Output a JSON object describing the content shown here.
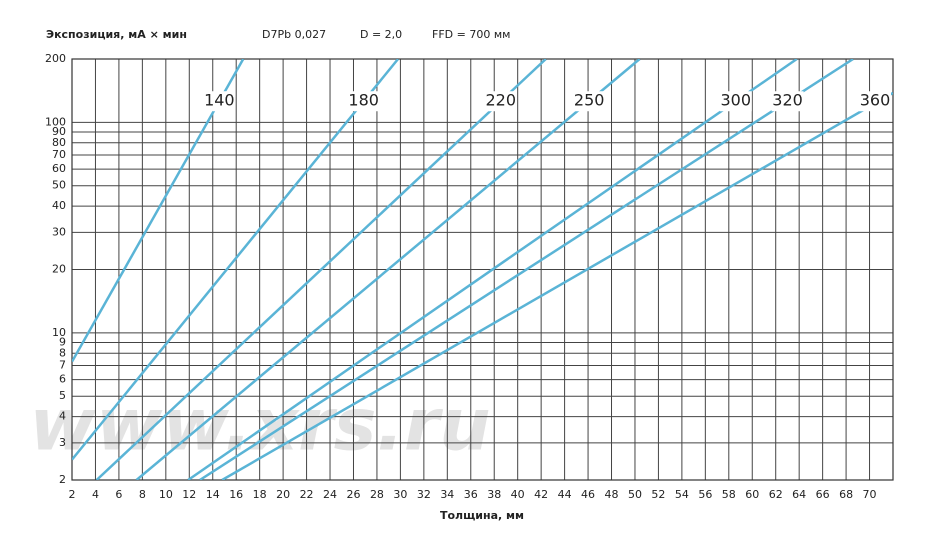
{
  "chart_data": {
    "type": "line",
    "title": "Экспозиция, мА × мин",
    "annotations": [
      "D7Pb 0,027",
      "D = 2,0",
      "FFD = 700 мм"
    ],
    "watermark": "www.xrs.ru",
    "x_label": "Толщина, мм",
    "xlim": [
      2,
      72
    ],
    "xticks": [
      2,
      4,
      6,
      8,
      10,
      12,
      14,
      16,
      18,
      20,
      22,
      24,
      26,
      28,
      30,
      32,
      34,
      36,
      38,
      40,
      42,
      44,
      46,
      48,
      50,
      52,
      54,
      56,
      58,
      60,
      62,
      64,
      66,
      68,
      70
    ],
    "ylim": [
      2,
      200
    ],
    "yticks": [
      2,
      3,
      4,
      5,
      6,
      7,
      8,
      9,
      10,
      20,
      30,
      40,
      50,
      60,
      70,
      80,
      90,
      100,
      200
    ],
    "log_y": true,
    "grid": true,
    "series": [
      {
        "name": "140",
        "color": "#5ab4d6",
        "x": [
          2,
          16.6
        ],
        "values": [
          7.3,
          200
        ]
      },
      {
        "name": "180",
        "color": "#5ab4d6",
        "x": [
          2,
          29.8
        ],
        "values": [
          2.5,
          200
        ]
      },
      {
        "name": "220",
        "color": "#5ab4d6",
        "x": [
          4.1,
          42.4
        ],
        "values": [
          2,
          200
        ]
      },
      {
        "name": "250",
        "color": "#5ab4d6",
        "x": [
          7.5,
          50.4
        ],
        "values": [
          2,
          200
        ]
      },
      {
        "name": "300",
        "color": "#5ab4d6",
        "x": [
          11.9,
          63.8
        ],
        "values": [
          2,
          200
        ]
      },
      {
        "name": "320",
        "color": "#5ab4d6",
        "x": [
          12.9,
          68.6
        ],
        "values": [
          2,
          200
        ]
      },
      {
        "name": "360",
        "color": "#5ab4d6",
        "x": [
          14.8,
          72
        ],
        "values": [
          2,
          138
        ]
      }
    ]
  }
}
